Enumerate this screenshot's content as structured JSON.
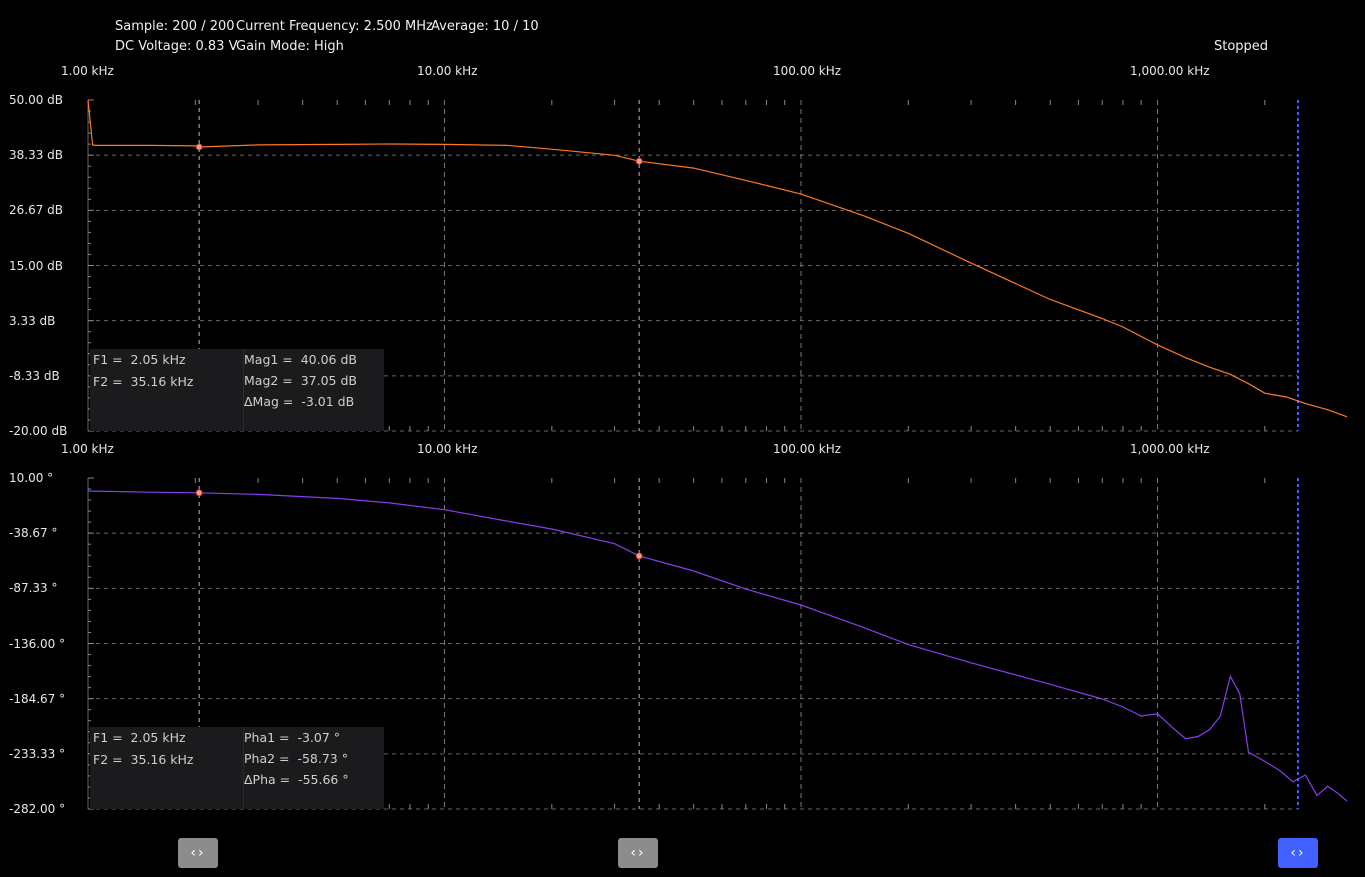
{
  "status": {
    "sample": "Sample: 200 / 200",
    "current_frequency": "Current Frequency: 2.500 MHz",
    "average": "Average: 10 / 10",
    "dc_voltage": "DC Voltage: 0.83 V",
    "gain_mode": "Gain Mode: High",
    "state": "Stopped"
  },
  "x_ticks": [
    "1.00 kHz",
    "10.00 kHz",
    "100.00 kHz",
    "1,000.00 kHz"
  ],
  "colors": {
    "magnitude": "#ff7a1e",
    "phase": "#8a3cf0",
    "cursor_marker": "#ff9a8a",
    "end_cursor": "#4260ff",
    "handle": "#8c8c8c"
  },
  "magnitude": {
    "y_ticks": [
      "50.00 dB",
      "38.33 dB",
      "26.67 dB",
      "15.00 dB",
      "3.33 dB",
      "-8.33 dB",
      "-20.00 dB"
    ],
    "readout": {
      "f1": "F1 =  2.05 kHz",
      "f2": "F2 =  35.16 kHz",
      "v1": "Mag1 =  40.06 dB",
      "v2": "Mag2 =  37.05 dB",
      "dv": "ΔMag =  -3.01 dB"
    }
  },
  "phase": {
    "y_ticks": [
      "10.00 °",
      "-38.67 °",
      "-87.33 °",
      "-136.00 °",
      "-184.67 °",
      "-233.33 °",
      "-282.00 °"
    ],
    "readout": {
      "f1": "F1 =  2.05 kHz",
      "f2": "F2 =  35.16 kHz",
      "v1": "Pha1 =  -3.07 °",
      "v2": "Pha2 =  -58.73 °",
      "dv": "ΔPha =  -55.66 °"
    }
  },
  "chart_data": [
    {
      "type": "line",
      "x_scale": "log",
      "xlim_khz": [
        1,
        3400
      ],
      "ylim": [
        -20,
        50
      ],
      "grid": true,
      "cursors_khz": [
        2.05,
        35.16
      ],
      "series": [
        {
          "x": [
            1,
            1.03,
            1.05,
            1.2,
            1.5,
            2,
            2.05,
            3,
            5,
            7,
            10,
            15,
            20,
            30,
            35.16,
            50,
            70,
            100,
            150,
            200,
            300,
            500,
            700,
            800,
            1000,
            1200,
            1400,
            1600,
            1800,
            2000,
            2300,
            2600,
            3000,
            3400
          ],
          "y": [
            50,
            40.5,
            40.4,
            40.4,
            40.4,
            40.3,
            40.06,
            40.5,
            40.6,
            40.7,
            40.6,
            40.4,
            39.6,
            38.3,
            37.05,
            35.6,
            33,
            30.1,
            25.5,
            21.8,
            15.5,
            7.8,
            3.8,
            2.0,
            -1.8,
            -4.5,
            -6.5,
            -8,
            -10,
            -12,
            -12.8,
            -14.2,
            -15.5,
            -17
          ]
        }
      ]
    },
    {
      "type": "line",
      "x_scale": "log",
      "xlim_khz": [
        1,
        3400
      ],
      "ylim": [
        -282,
        10
      ],
      "grid": true,
      "cursors_khz": [
        2.05,
        35.16
      ],
      "series": [
        {
          "x": [
            1,
            1.5,
            2.05,
            3,
            5,
            7,
            10,
            15,
            20,
            30,
            35.16,
            50,
            70,
            100,
            150,
            200,
            300,
            500,
            700,
            800,
            900,
            1000,
            1100,
            1200,
            1300,
            1400,
            1500,
            1600,
            1700,
            1800,
            1900,
            2000,
            2200,
            2400,
            2600,
            2800,
            3000,
            3200,
            3400
          ],
          "y": [
            -1.5,
            -2.5,
            -3.07,
            -4.5,
            -8,
            -12,
            -18,
            -28,
            -35,
            -48,
            -58.73,
            -72,
            -88,
            -102,
            -122,
            -137,
            -153,
            -172,
            -185,
            -192,
            -200,
            -198,
            -210,
            -220,
            -218,
            -212,
            -200,
            -165,
            -180,
            -232,
            -236,
            -240,
            -248,
            -258,
            -252,
            -270,
            -262,
            -268,
            -275
          ]
        }
      ]
    }
  ]
}
